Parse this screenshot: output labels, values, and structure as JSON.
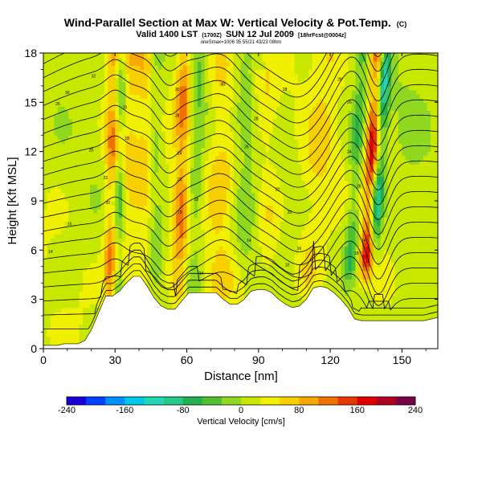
{
  "chart_data": {
    "type": "heatmap",
    "title": "Wind-Parallel Section at Max W: Vertical Velocity & Pot.Temp.",
    "title_units": "(C)",
    "subtitle": "Valid 1400 LST",
    "subtitle_small_1": "(1700Z)",
    "subtitle_date": "SUN 12 Jul 2009",
    "subtitle_small_2": "[18hrFcst@0004z]",
    "subtitle_line2": "oneSmax=1006 35 55/21 43/23 08hm",
    "xlabel": "Distance [nm]",
    "ylabel": "Height [Kft MSL]",
    "xlim": [
      0,
      165
    ],
    "ylim": [
      0,
      18
    ],
    "xticks": [
      0,
      30,
      60,
      90,
      120,
      150
    ],
    "yticks": [
      0,
      3,
      6,
      9,
      12,
      15,
      18
    ],
    "colorbar": {
      "label": "Vertical Velocity [cm/s]",
      "ticks": [
        -240,
        -160,
        -80,
        0,
        80,
        160,
        240
      ],
      "min": -240,
      "max": 240,
      "colors": [
        "#1a00d8",
        "#0040ff",
        "#0090ff",
        "#00c8e8",
        "#20d8b8",
        "#28c888",
        "#20b050",
        "#50c030",
        "#90d820",
        "#c8e800",
        "#f0f000",
        "#f8d000",
        "#f8a800",
        "#f07000",
        "#e83800",
        "#e00000",
        "#b00020",
        "#780048"
      ]
    },
    "terrain_height": [
      0.2,
      0.2,
      0.2,
      0.3,
      0.3,
      0.3,
      0.5,
      1.2,
      2.2,
      3.2,
      3.2,
      3.5,
      4.0,
      4.4,
      4.4,
      3.8,
      3.1,
      2.6,
      2.4,
      2.4,
      2.9,
      3.4,
      3.4,
      3.4,
      3.4,
      3.4,
      3.0,
      2.7,
      2.7,
      3.0,
      3.5,
      3.6,
      3.6,
      3.4,
      3.0,
      2.7,
      2.5,
      2.6,
      3.0,
      3.7,
      3.8,
      3.7,
      3.4,
      3.0,
      2.5,
      1.8,
      1.7,
      1.7,
      1.7,
      1.7,
      1.7,
      1.7,
      1.7,
      1.7,
      1.7,
      1.7,
      1.8,
      1.9
    ],
    "w_features": [
      {
        "x": 28,
        "z0": 2.0,
        "z1": 18,
        "tilt": 0.1,
        "width": 3,
        "amp": 110
      },
      {
        "x": 31,
        "z0": 3.0,
        "z1": 18,
        "tilt": 0.1,
        "width": 2.5,
        "amp": -90
      },
      {
        "x": 35,
        "z0": 3.5,
        "z1": 18,
        "tilt": 0.05,
        "width": 4,
        "amp": 55
      },
      {
        "x": 42,
        "z0": 4.0,
        "z1": 18,
        "tilt": 0.05,
        "width": 4,
        "amp": 50
      },
      {
        "x": 47,
        "z0": 4.0,
        "z1": 18,
        "tilt": 0.0,
        "width": 3,
        "amp": -45
      },
      {
        "x": 57,
        "z0": 3.0,
        "z1": 18,
        "tilt": 0.15,
        "width": 3.5,
        "amp": 110
      },
      {
        "x": 62,
        "z0": 3.0,
        "z1": 18,
        "tilt": 0.2,
        "width": 4,
        "amp": -60
      },
      {
        "x": 74,
        "z0": 3.0,
        "z1": 18,
        "tilt": 0.1,
        "width": 7,
        "amp": 55
      },
      {
        "x": 83,
        "z0": 3.0,
        "z1": 18,
        "tilt": 0.1,
        "width": 5,
        "amp": -40
      },
      {
        "x": 95,
        "z0": 4.0,
        "z1": 16,
        "tilt": -0.2,
        "width": 5,
        "amp": 40
      },
      {
        "x": 110,
        "z0": 3.0,
        "z1": 18,
        "tilt": 0.6,
        "width": 6,
        "amp": 45
      },
      {
        "x": 128,
        "z0": 4.0,
        "z1": 18,
        "tilt": 0.4,
        "width": 3,
        "amp": -80
      },
      {
        "x": 135,
        "z0": 4.5,
        "z1": 18,
        "tilt": 0.35,
        "width": 3,
        "amp": 170
      },
      {
        "x": 138,
        "z0": 5.0,
        "z1": 18,
        "tilt": 0.4,
        "width": 2.5,
        "amp": -140
      },
      {
        "x": 152,
        "z0": 2.0,
        "z1": 18,
        "tilt": 0.1,
        "width": 10,
        "amp": -15
      }
    ],
    "theta_contours": {
      "count": 22,
      "spacing_kft": 0.85,
      "waves": [
        {
          "x": 30,
          "amp": 0.6,
          "width": 5
        },
        {
          "x": 52,
          "amp": -1.2,
          "width": 6
        },
        {
          "x": 75,
          "amp": 1.4,
          "width": 10
        },
        {
          "x": 108,
          "amp": -1.6,
          "width": 12
        },
        {
          "x": 128,
          "amp": 1.2,
          "width": 8
        },
        {
          "x": 140,
          "amp": -2.5,
          "width": 6
        }
      ],
      "labels": [
        {
          "x": 21,
          "z": 16.6,
          "text": "32"
        },
        {
          "x": 34,
          "z": 14.7,
          "text": "28"
        },
        {
          "x": 10,
          "z": 15.6,
          "text": "30"
        },
        {
          "x": 6,
          "z": 14.9,
          "text": "26"
        },
        {
          "x": 56,
          "z": 15.8,
          "text": "30"
        },
        {
          "x": 56,
          "z": 14.2,
          "text": "28"
        },
        {
          "x": 57,
          "z": 11.9,
          "text": "24"
        },
        {
          "x": 57,
          "z": 10.3,
          "text": "22"
        },
        {
          "x": 57,
          "z": 8.3,
          "text": "20"
        },
        {
          "x": 64,
          "z": 9.1,
          "text": "18"
        },
        {
          "x": 66,
          "z": 4.6,
          "text": "14"
        },
        {
          "x": 35,
          "z": 12.8,
          "text": "18"
        },
        {
          "x": 26,
          "z": 10.4,
          "text": "22"
        },
        {
          "x": 27,
          "z": 8.9,
          "text": "20"
        },
        {
          "x": 11,
          "z": 7.6,
          "text": "16"
        },
        {
          "x": 3,
          "z": 5.9,
          "text": "14"
        },
        {
          "x": 20,
          "z": 12.1,
          "text": "20"
        },
        {
          "x": 75,
          "z": 16.1,
          "text": "30"
        },
        {
          "x": 89,
          "z": 14.0,
          "text": "28"
        },
        {
          "x": 85,
          "z": 12.3,
          "text": "26"
        },
        {
          "x": 98,
          "z": 9.7,
          "text": "22"
        },
        {
          "x": 103,
          "z": 8.3,
          "text": "20"
        },
        {
          "x": 107,
          "z": 6.1,
          "text": "16"
        },
        {
          "x": 86,
          "z": 6.6,
          "text": "14"
        },
        {
          "x": 102,
          "z": 5.1,
          "text": "10"
        },
        {
          "x": 101,
          "z": 15.8,
          "text": "28"
        },
        {
          "x": 124,
          "z": 16.4,
          "text": "28"
        },
        {
          "x": 128,
          "z": 15.0,
          "text": "26"
        },
        {
          "x": 128,
          "z": 12.0,
          "text": "24"
        },
        {
          "x": 132,
          "z": 9.9,
          "text": "26"
        },
        {
          "x": 131,
          "z": 5.8,
          "text": "18"
        },
        {
          "x": 134,
          "z": 6.6,
          "text": "14"
        }
      ]
    }
  }
}
